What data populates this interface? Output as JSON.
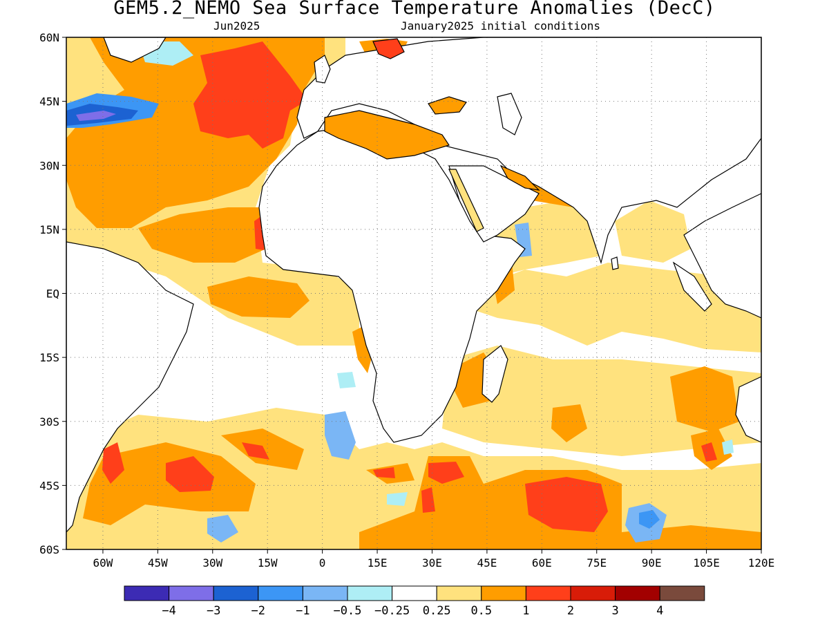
{
  "title": "GEM5.2_NEMO Sea Surface Temperature Anomalies (DecC)",
  "subtitle_left": "Jun2025",
  "subtitle_right": "January2025 initial conditions",
  "map": {
    "lon_range": [
      -70,
      120
    ],
    "lat_range": [
      -60,
      60
    ],
    "lat_ticks": [
      {
        "value": 60,
        "label": "60N"
      },
      {
        "value": 45,
        "label": "45N"
      },
      {
        "value": 30,
        "label": "30N"
      },
      {
        "value": 15,
        "label": "15N"
      },
      {
        "value": 0,
        "label": "EQ"
      },
      {
        "value": -15,
        "label": "15S"
      },
      {
        "value": -30,
        "label": "30S"
      },
      {
        "value": -45,
        "label": "45S"
      },
      {
        "value": -60,
        "label": "60S"
      }
    ],
    "lon_ticks": [
      {
        "value": -60,
        "label": "60W"
      },
      {
        "value": -45,
        "label": "45W"
      },
      {
        "value": -30,
        "label": "30W"
      },
      {
        "value": -15,
        "label": "15W"
      },
      {
        "value": 0,
        "label": "0"
      },
      {
        "value": 15,
        "label": "15E"
      },
      {
        "value": 30,
        "label": "30E"
      },
      {
        "value": 45,
        "label": "45E"
      },
      {
        "value": 60,
        "label": "60E"
      },
      {
        "value": 75,
        "label": "75E"
      },
      {
        "value": 90,
        "label": "90E"
      },
      {
        "value": 105,
        "label": "105E"
      },
      {
        "value": 120,
        "label": "120E"
      }
    ],
    "grid": "dotted",
    "anomaly_regions": [
      {
        "name": "subpolar-north-atlantic-warm",
        "level": "1 to 2",
        "color": "#ff3f1a",
        "lon": [
          -35,
          -10
        ],
        "lat": [
          40,
          58
        ]
      },
      {
        "name": "northwest-atlantic-cold",
        "level": "-3 to -2",
        "color": "#1c62d2",
        "lon": [
          -70,
          -52
        ],
        "lat": [
          41,
          46
        ]
      },
      {
        "name": "north-atlantic-warm",
        "level": "0.5 to 1",
        "color": "#ff9d00",
        "lon": [
          -70,
          -10
        ],
        "lat": [
          20,
          58
        ]
      },
      {
        "name": "mediterranean-warm",
        "level": "0.5 to 1",
        "color": "#ff9d00",
        "lon": [
          0,
          36
        ],
        "lat": [
          31,
          45
        ]
      },
      {
        "name": "equatorial-atlantic-warm",
        "level": "0.5 to 1",
        "color": "#ff9d00",
        "lon": [
          -30,
          -5
        ],
        "lat": [
          -5,
          2
        ]
      },
      {
        "name": "south-atlantic-warm-core",
        "level": "1 to 2",
        "color": "#ff3f1a",
        "lon": [
          -40,
          -28
        ],
        "lat": [
          -46,
          -40
        ]
      },
      {
        "name": "southern-indian-warm-core",
        "level": "1 to 2",
        "color": "#ff3f1a",
        "lon": [
          54,
          78
        ],
        "lat": [
          -57,
          -45
        ]
      },
      {
        "name": "south-indian-cold",
        "level": "-1 to -0.5",
        "color": "#7ab6f5",
        "lon": [
          84,
          100
        ],
        "lat": [
          -58,
          -50
        ]
      },
      {
        "name": "southern-ocean-warm",
        "level": "0.5 to 1",
        "color": "#ff9d00",
        "lon": [
          15,
          120
        ],
        "lat": [
          -60,
          -40
        ]
      }
    ]
  },
  "colorbar": {
    "colors": [
      "#3c2bb4",
      "#7e6ee8",
      "#1c62d2",
      "#3c96f5",
      "#7ab6f5",
      "#aeeef5",
      "#ffffff",
      "#ffe27e",
      "#ff9d00",
      "#ff3f1a",
      "#d81c08",
      "#a20000",
      "#7a4a3c"
    ],
    "labels": [
      "−4",
      "−3",
      "−2",
      "−1",
      "−0.5",
      "−0.25",
      "0.25",
      "0.5",
      "1",
      "2",
      "3",
      "4"
    ]
  }
}
